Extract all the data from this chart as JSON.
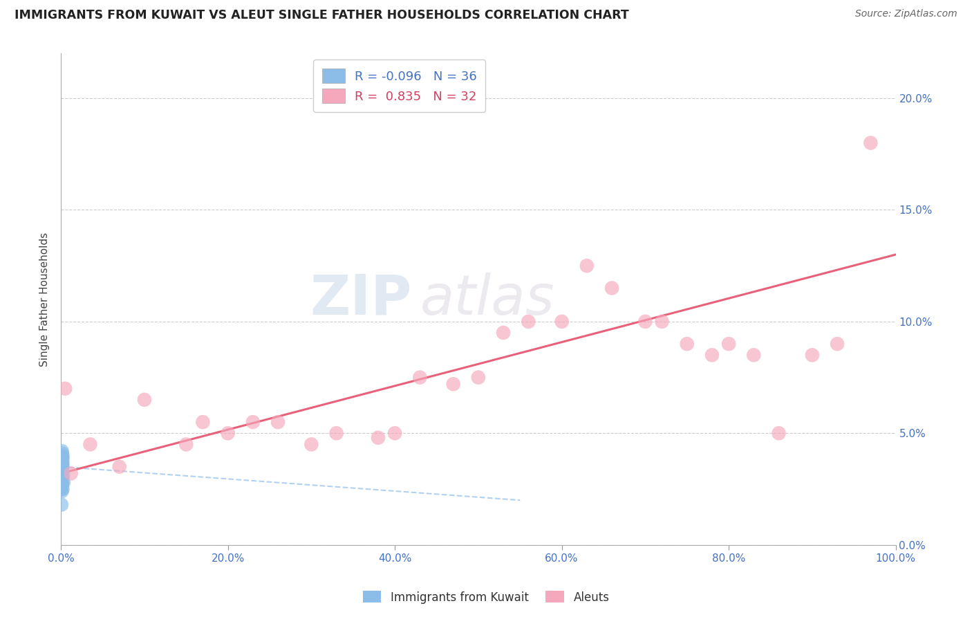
{
  "title": "IMMIGRANTS FROM KUWAIT VS ALEUT SINGLE FATHER HOUSEHOLDS CORRELATION CHART",
  "source": "Source: ZipAtlas.com",
  "ylabel": "Single Father Households",
  "legend_label1": "Immigrants from Kuwait",
  "legend_label2": "Aleuts",
  "r1": -0.096,
  "n1": 36,
  "r2": 0.835,
  "n2": 32,
  "color_blue": "#8BBDE8",
  "color_pink": "#F5A8BC",
  "line_blue": "#A8CCF0",
  "line_pink": "#E8607A",
  "watermark_zip": "ZIP",
  "watermark_atlas": "atlas",
  "xlim": [
    0.0,
    100.0
  ],
  "ylim": [
    0.0,
    22.0
  ],
  "xticks": [
    0.0,
    20.0,
    40.0,
    60.0,
    80.0,
    100.0
  ],
  "yticks": [
    0.0,
    5.0,
    10.0,
    15.0,
    20.0
  ],
  "blue_points_x": [
    0.05,
    0.08,
    0.1,
    0.12,
    0.15,
    0.18,
    0.2,
    0.25,
    0.3,
    0.05,
    0.08,
    0.12,
    0.15,
    0.18,
    0.1,
    0.08,
    0.06,
    0.12,
    0.1,
    0.15,
    0.18,
    0.1,
    0.08,
    0.12,
    0.05,
    0.08,
    0.1,
    0.12,
    0.15,
    0.18,
    0.2,
    0.1,
    0.12,
    0.08,
    0.06,
    0.15
  ],
  "blue_points_y": [
    3.2,
    3.5,
    3.8,
    3.0,
    3.3,
    3.6,
    3.9,
    3.1,
    2.8,
    2.5,
    2.9,
    3.4,
    2.7,
    4.0,
    3.7,
    2.6,
    3.1,
    4.2,
    2.4,
    3.8,
    3.5,
    3.2,
    2.9,
    3.6,
    3.3,
    3.0,
    2.7,
    3.4,
    4.1,
    3.7,
    2.5,
    3.9,
    2.8,
    3.6,
    1.8,
    3.3
  ],
  "pink_points_x": [
    0.5,
    1.2,
    3.5,
    7.0,
    10.0,
    15.0,
    17.0,
    20.0,
    23.0,
    26.0,
    30.0,
    33.0,
    38.0,
    40.0,
    43.0,
    47.0,
    50.0,
    53.0,
    56.0,
    60.0,
    63.0,
    66.0,
    70.0,
    72.0,
    75.0,
    78.0,
    80.0,
    83.0,
    86.0,
    90.0,
    93.0,
    97.0
  ],
  "pink_points_y": [
    7.0,
    3.2,
    4.5,
    3.5,
    6.5,
    4.5,
    5.5,
    5.0,
    5.5,
    5.5,
    4.5,
    5.0,
    4.8,
    5.0,
    7.5,
    7.2,
    7.5,
    9.5,
    10.0,
    10.0,
    12.5,
    11.5,
    10.0,
    10.0,
    9.0,
    8.5,
    9.0,
    8.5,
    5.0,
    8.5,
    9.0,
    18.0
  ],
  "pink_line_x0": 0.0,
  "pink_line_x1": 100.0,
  "pink_line_y0": 3.2,
  "pink_line_y1": 13.0,
  "blue_line_x0": 0.0,
  "blue_line_x1": 55.0,
  "blue_line_y0": 3.5,
  "blue_line_y1": 2.0
}
